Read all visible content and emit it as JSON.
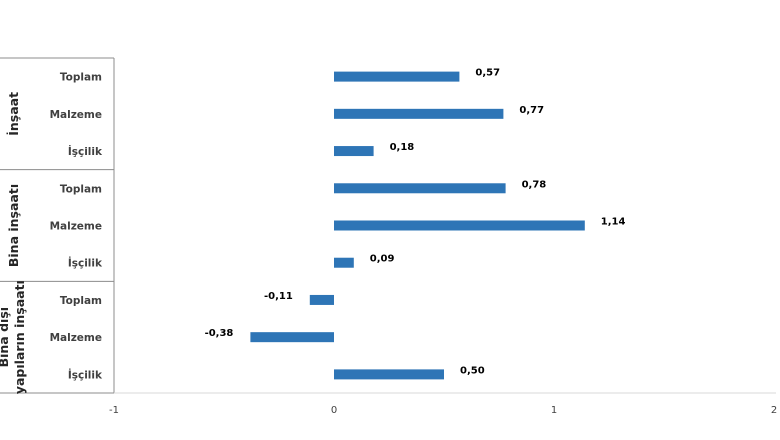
{
  "chart_data": {
    "type": "bar",
    "orientation": "horizontal",
    "xlim": [
      -1,
      2
    ],
    "xticks": [
      "-1",
      "0",
      "1",
      "2"
    ],
    "groups": [
      {
        "name_lines": [
          "İnşaat"
        ],
        "categories": [
          "Toplam",
          "Malzeme",
          "İşçilik"
        ],
        "values": [
          0.57,
          0.77,
          0.18
        ],
        "labels": [
          "0,57",
          "0,77",
          "0,18"
        ]
      },
      {
        "name_lines": [
          "Bina inşaatı"
        ],
        "categories": [
          "Toplam",
          "Malzeme",
          "İşçilik"
        ],
        "values": [
          0.78,
          1.14,
          0.09
        ],
        "labels": [
          "0,78",
          "1,14",
          "0,09"
        ]
      },
      {
        "name_lines": [
          "Bina dışı",
          "yapıların inşaatı"
        ],
        "categories": [
          "Toplam",
          "Malzeme",
          "İşçilik"
        ],
        "values": [
          -0.11,
          -0.38,
          0.5
        ],
        "labels": [
          "-0,11",
          "-0,38",
          "0,50"
        ]
      }
    ],
    "bar_color": "#2e75b6",
    "grid": false,
    "legend": "none"
  }
}
